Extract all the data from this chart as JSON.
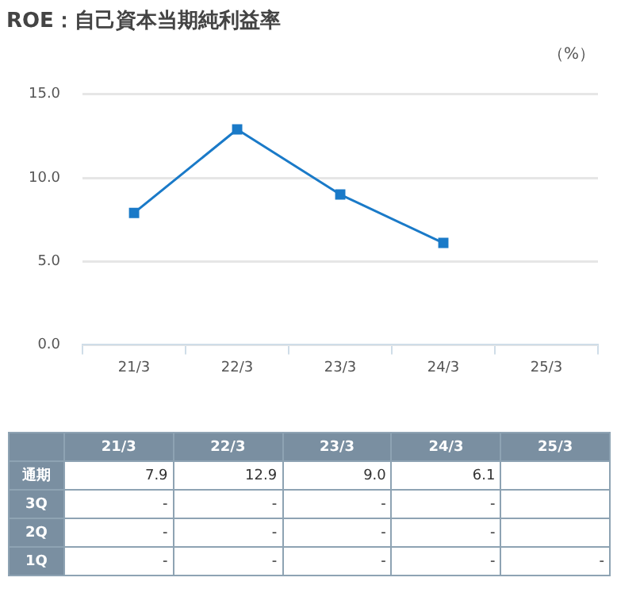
{
  "chart_data": {
    "type": "line",
    "title": "ROE：自己資本当期純利益率",
    "ylabel": "（%）",
    "categories": [
      "21/3",
      "22/3",
      "23/3",
      "24/3",
      "25/3"
    ],
    "series": [
      {
        "name": "通期",
        "color": "#1a7ac8",
        "values": [
          7.9,
          12.9,
          9.0,
          6.1,
          null
        ],
        "value_labels": [
          "7.9",
          "12.9",
          "9.0",
          "6.1",
          null
        ]
      },
      {
        "name": "3Q",
        "values": [
          null,
          null,
          null,
          null,
          null
        ],
        "value_labels": [
          "-",
          "-",
          "-",
          "-",
          null
        ]
      },
      {
        "name": "2Q",
        "values": [
          null,
          null,
          null,
          null,
          null
        ],
        "value_labels": [
          "-",
          "-",
          "-",
          "-",
          null
        ]
      },
      {
        "name": "1Q",
        "values": [
          null,
          null,
          null,
          null,
          null
        ],
        "value_labels": [
          "-",
          "-",
          "-",
          "-",
          "-"
        ]
      }
    ],
    "ylim": [
      0,
      15
    ],
    "yticks": [
      {
        "value": 0,
        "label": "0.0"
      },
      {
        "value": 5,
        "label": "5.0"
      },
      {
        "value": 10,
        "label": "10.0"
      },
      {
        "value": 15,
        "label": "15.0"
      }
    ],
    "grid": "y",
    "marker": "square",
    "line_style": "solid",
    "legend": "bottom"
  }
}
